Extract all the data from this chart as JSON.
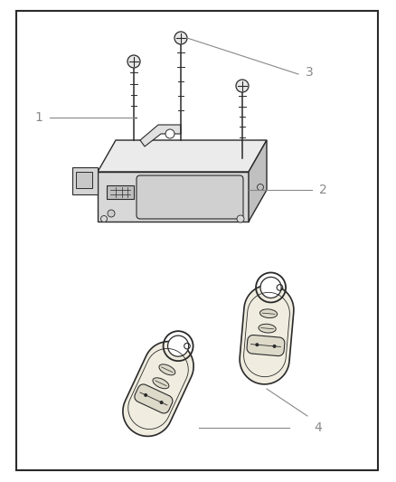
{
  "bg_color": "#ffffff",
  "border_color": "#2a2a2a",
  "line_color": "#2a2a2a",
  "fill_light": "#f5f5f5",
  "fill_mid": "#e0e0e0",
  "fill_dark": "#c8c8c8",
  "label_color": "#888888",
  "fig_width": 4.38,
  "fig_height": 5.33,
  "dpi": 100
}
